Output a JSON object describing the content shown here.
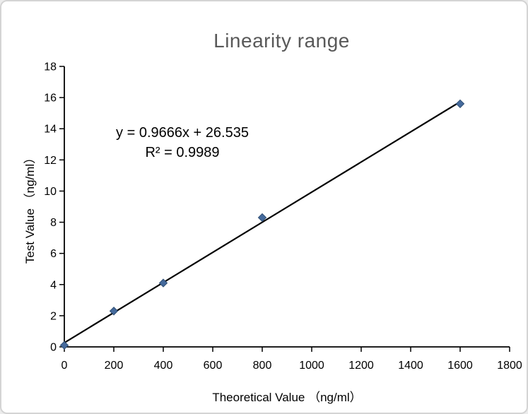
{
  "window": {
    "background": "#ffffff",
    "frame_border_color": "#d4d4d4"
  },
  "chart_data": {
    "type": "scatter",
    "title": "Linearity range",
    "title_color": "#595959",
    "xlabel": "Theoretical Value （ng/ml）",
    "ylabel": "Test Value （ng/ml）",
    "x": [
      0,
      200,
      400,
      800,
      1600
    ],
    "y": [
      0.1,
      2.3,
      4.1,
      8.3,
      15.6
    ],
    "xlim": [
      0,
      1800
    ],
    "ylim": [
      0,
      18
    ],
    "xticks": [
      0,
      200,
      400,
      600,
      800,
      1000,
      1200,
      1400,
      1600,
      1800
    ],
    "yticks": [
      0,
      2,
      4,
      6,
      8,
      10,
      12,
      14,
      16,
      18
    ],
    "grid": false,
    "legend": null,
    "axis_color": "#000000",
    "annotation": {
      "line1": "y = 0.9666x + 26.535",
      "line2": "R² = 0.9989"
    },
    "trendline": {
      "slope": 0.9666,
      "intercept": 26.535,
      "y_divisor": 100,
      "x_start": 0,
      "x_end": 1600,
      "color": "#000000"
    },
    "marker": {
      "shape": "diamond",
      "fill": "#456a9c",
      "stroke": "#2e4d72",
      "size": 11
    }
  }
}
